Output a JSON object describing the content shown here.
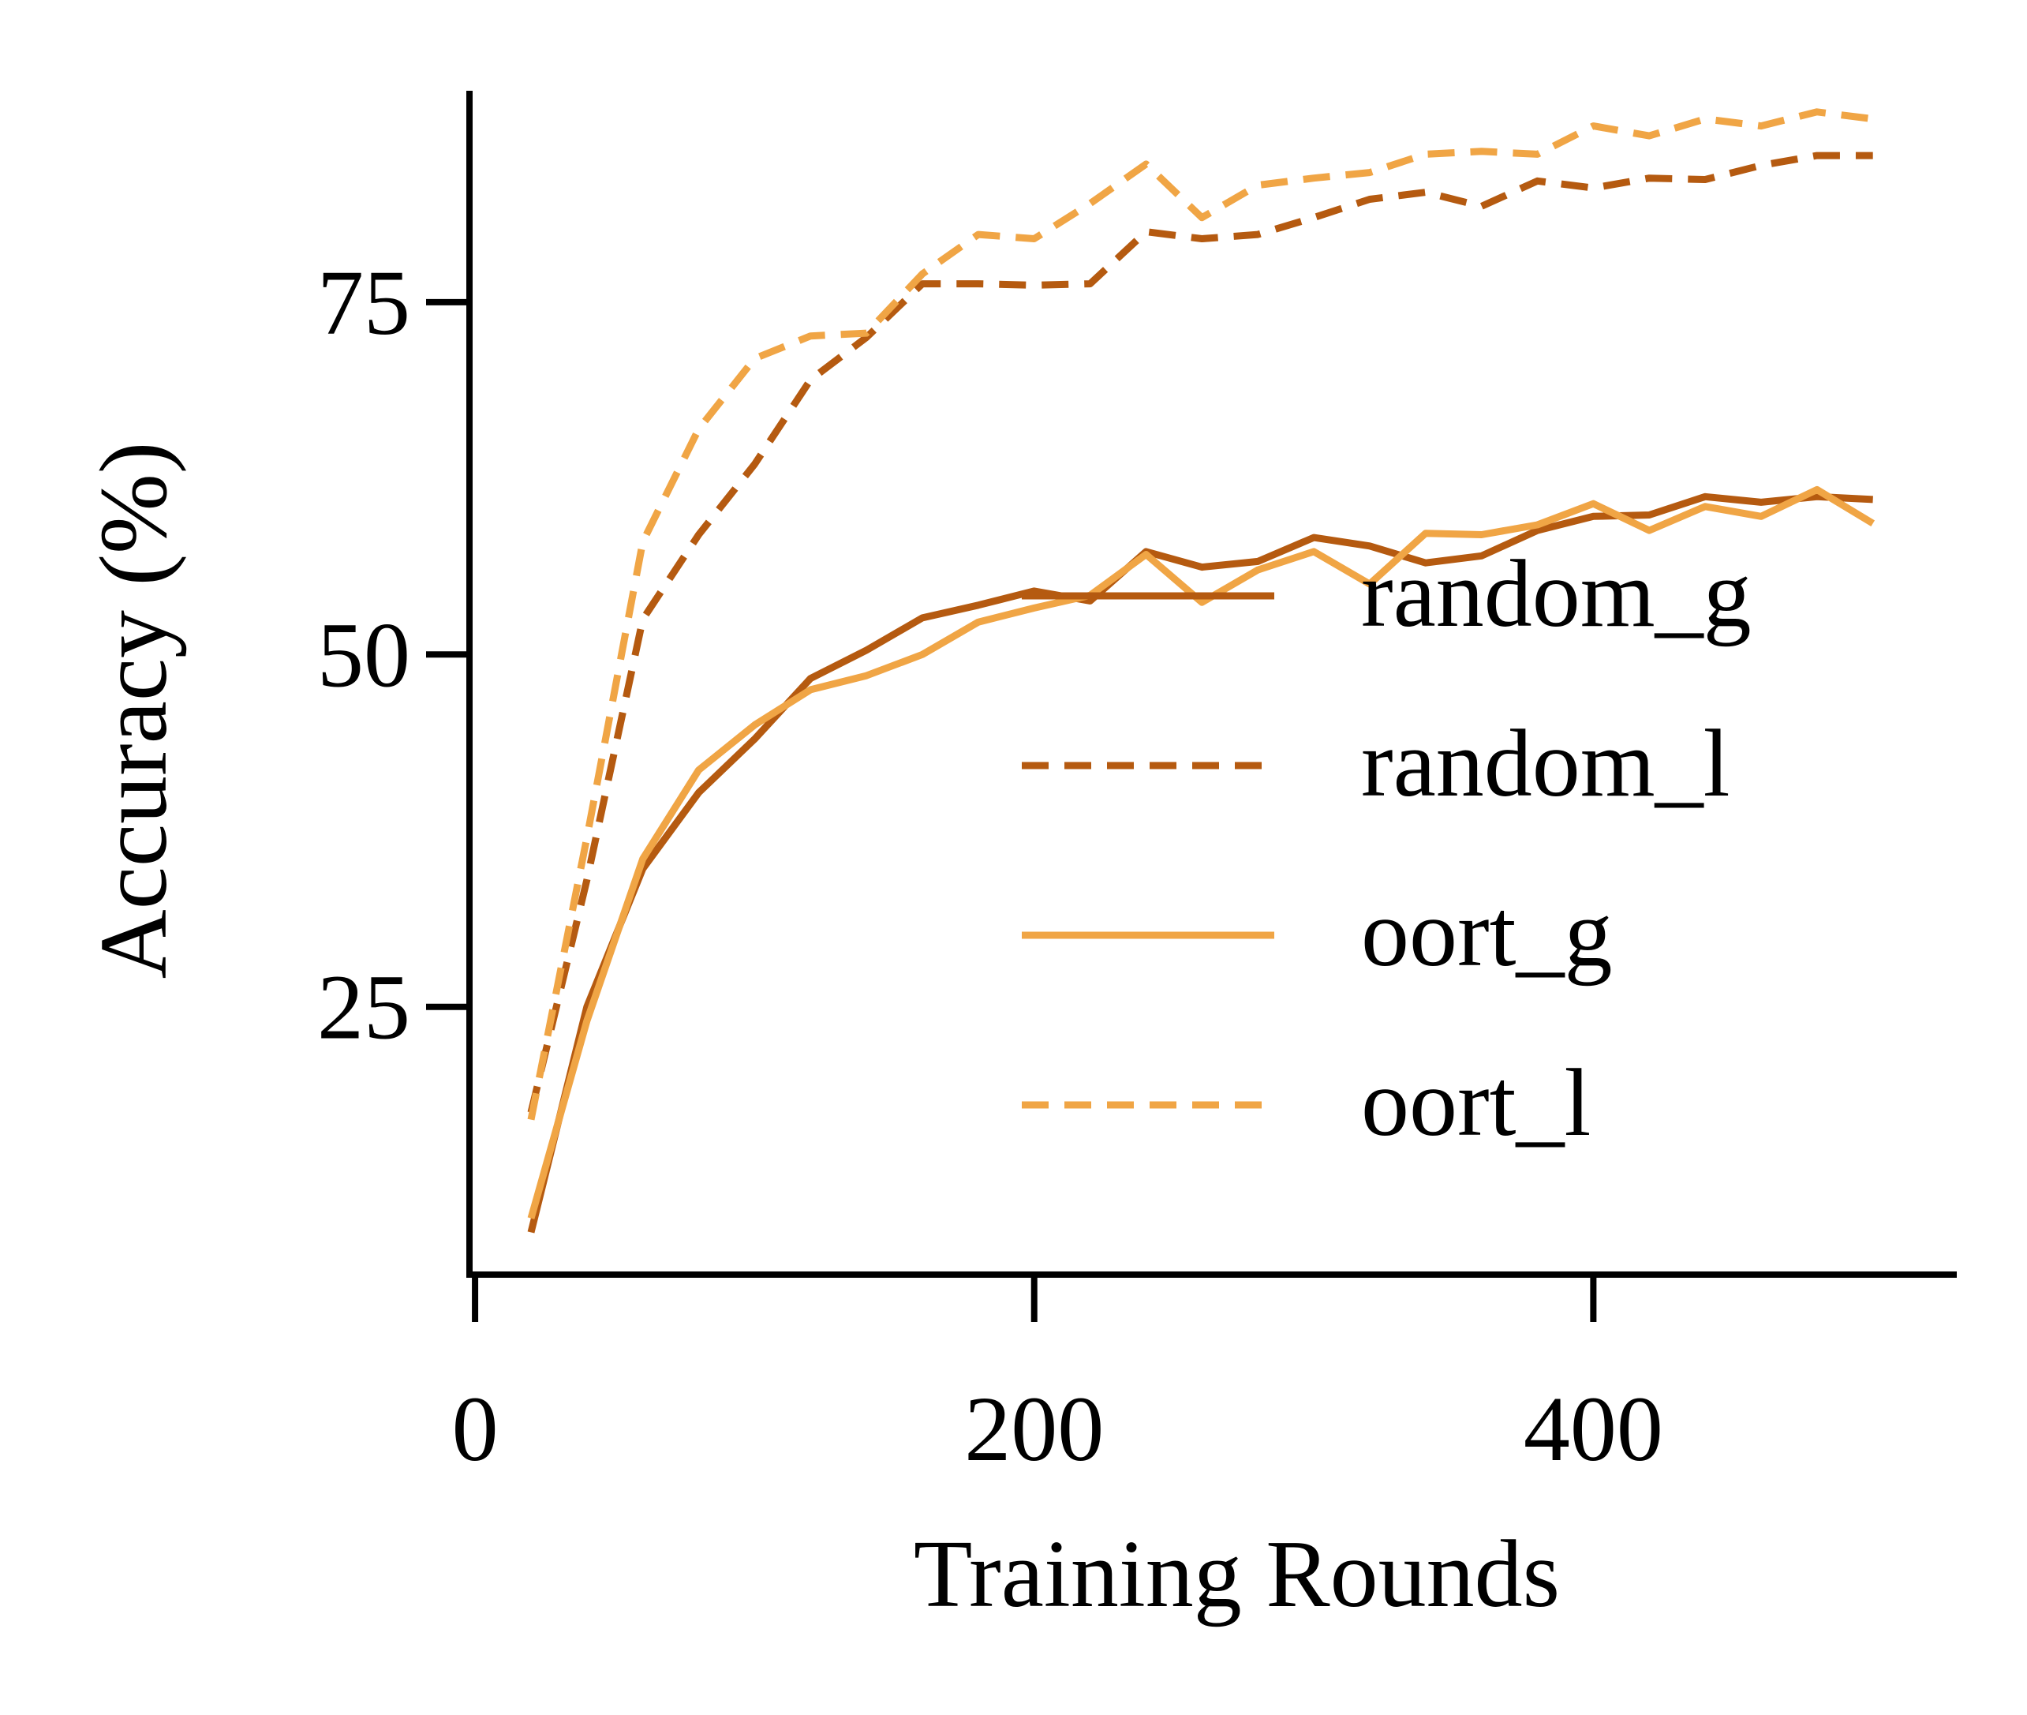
{
  "chart_data": {
    "type": "line",
    "title": "",
    "xlabel": "Training Rounds",
    "ylabel": "Accuracy (%)",
    "xlim": [
      -2,
      530
    ],
    "ylim": [
      6,
      90
    ],
    "xticks": [
      0,
      200,
      400
    ],
    "yticks": [
      25,
      50,
      75
    ],
    "grid": false,
    "legend_position": "lower-right",
    "x": [
      20,
      40,
      60,
      80,
      100,
      120,
      140,
      160,
      180,
      200,
      220,
      240,
      260,
      280,
      300,
      320,
      340,
      360,
      380,
      400,
      420,
      440,
      460,
      480,
      500
    ],
    "series": [
      {
        "name": "random_g",
        "color": "#b55a10",
        "dash": "solid",
        "values": [
          9.0,
          25.0,
          34.8,
          40.2,
          44.0,
          48.3,
          50.3,
          52.6,
          53.5,
          54.5,
          53.8,
          57.3,
          56.2,
          56.6,
          58.3,
          57.7,
          56.5,
          57.0,
          58.8,
          59.8,
          59.9,
          61.2,
          60.8,
          61.2,
          61.0
        ]
      },
      {
        "name": "random_l",
        "color": "#b55a10",
        "dash": "dashed",
        "values": [
          17.5,
          34.0,
          52.5,
          58.5,
          63.5,
          69.5,
          72.5,
          76.3,
          76.3,
          76.2,
          76.3,
          80.0,
          79.5,
          79.8,
          81.0,
          82.3,
          82.8,
          81.8,
          83.6,
          83.1,
          83.8,
          83.7,
          84.7,
          85.4,
          85.4
        ]
      },
      {
        "name": "oort_g",
        "color": "#f0a545",
        "dash": "solid",
        "values": [
          10.0,
          24.0,
          35.5,
          41.8,
          45.0,
          47.5,
          48.5,
          50.0,
          52.3,
          53.3,
          54.2,
          57.1,
          53.7,
          56.0,
          57.3,
          55.0,
          58.6,
          58.5,
          59.2,
          60.7,
          58.8,
          60.5,
          59.8,
          61.7,
          59.3
        ]
      },
      {
        "name": "oort_l",
        "color": "#f0a545",
        "dash": "dashed",
        "values": [
          17.0,
          37.0,
          58.0,
          66.0,
          71.0,
          72.6,
          72.8,
          77.0,
          79.8,
          79.5,
          82.0,
          84.8,
          81.0,
          83.3,
          83.8,
          84.2,
          85.5,
          85.7,
          85.5,
          87.5,
          86.8,
          88.0,
          87.5,
          88.5,
          88.0
        ]
      }
    ]
  }
}
